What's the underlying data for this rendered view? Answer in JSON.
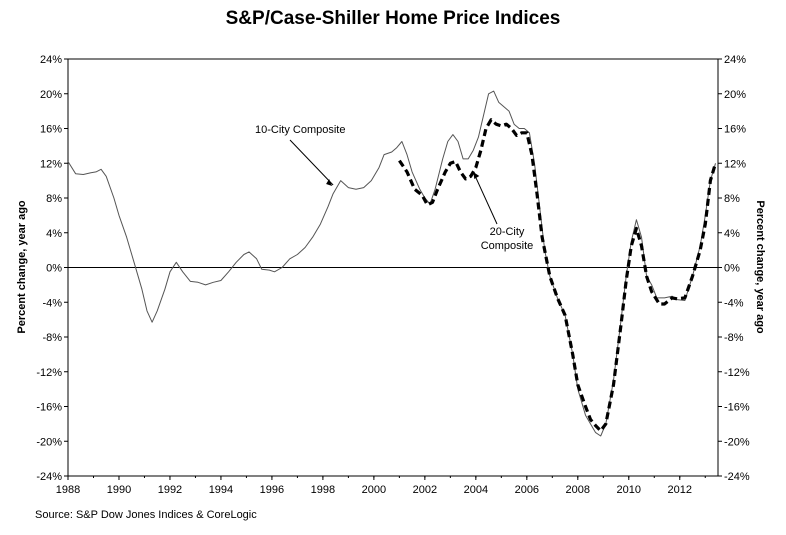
{
  "chart_data": {
    "type": "line",
    "title": "S&P/Case-Shiller Home Price Indices",
    "source": "Source: S&P Dow Jones Indices & CoreLogic",
    "ylabel_left": "Percent change, year ago",
    "ylabel_right": "Percent change, year ago",
    "xlim": [
      1988,
      2013.5
    ],
    "ylim": [
      -24,
      24
    ],
    "x_ticks": [
      "1988",
      "1990",
      "1992",
      "1994",
      "1996",
      "1998",
      "2000",
      "2002",
      "2004",
      "2006",
      "2008",
      "2010",
      "2012"
    ],
    "y_ticks": [
      "24%",
      "20%",
      "16%",
      "12%",
      "8%",
      "4%",
      "0%",
      "-4%",
      "-8%",
      "-12%",
      "-16%",
      "-20%",
      "-24%"
    ],
    "grid": false,
    "zero_line": true,
    "annotations": [
      {
        "text": "10-City Composite",
        "x": 1998.4,
        "y": 9.5
      },
      {
        "text": "20-City",
        "x": 2003.9,
        "y": 11.0
      },
      {
        "text": "Composite",
        "x": 2003.9,
        "y": 11.0
      }
    ],
    "series": [
      {
        "name": "10-City Composite",
        "style": "solid",
        "color": "#555555",
        "points": [
          [
            1988.0,
            12.2
          ],
          [
            1988.3,
            10.8
          ],
          [
            1988.6,
            10.7
          ],
          [
            1988.9,
            10.9
          ],
          [
            1989.1,
            11.0
          ],
          [
            1989.3,
            11.3
          ],
          [
            1989.5,
            10.5
          ],
          [
            1989.8,
            8.0
          ],
          [
            1990.0,
            6.0
          ],
          [
            1990.3,
            3.5
          ],
          [
            1990.6,
            0.5
          ],
          [
            1990.9,
            -2.5
          ],
          [
            1991.1,
            -5.0
          ],
          [
            1991.3,
            -6.3
          ],
          [
            1991.5,
            -5.0
          ],
          [
            1991.8,
            -2.5
          ],
          [
            1992.0,
            -0.5
          ],
          [
            1992.25,
            0.6
          ],
          [
            1992.5,
            -0.5
          ],
          [
            1992.8,
            -1.6
          ],
          [
            1993.1,
            -1.7
          ],
          [
            1993.4,
            -2.0
          ],
          [
            1993.7,
            -1.7
          ],
          [
            1994.0,
            -1.5
          ],
          [
            1994.3,
            -0.5
          ],
          [
            1994.6,
            0.6
          ],
          [
            1994.9,
            1.5
          ],
          [
            1995.1,
            1.8
          ],
          [
            1995.4,
            1.0
          ],
          [
            1995.6,
            -0.2
          ],
          [
            1995.9,
            -0.3
          ],
          [
            1996.1,
            -0.5
          ],
          [
            1996.4,
            0.0
          ],
          [
            1996.7,
            1.0
          ],
          [
            1997.0,
            1.5
          ],
          [
            1997.3,
            2.3
          ],
          [
            1997.6,
            3.5
          ],
          [
            1997.9,
            5.0
          ],
          [
            1998.2,
            7.0
          ],
          [
            1998.4,
            8.5
          ],
          [
            1998.7,
            10.0
          ],
          [
            1999.0,
            9.2
          ],
          [
            1999.3,
            9.0
          ],
          [
            1999.6,
            9.2
          ],
          [
            1999.9,
            10.0
          ],
          [
            2000.2,
            11.5
          ],
          [
            2000.4,
            13.0
          ],
          [
            2000.7,
            13.3
          ],
          [
            2000.9,
            13.8
          ],
          [
            2001.1,
            14.5
          ],
          [
            2001.3,
            13.0
          ],
          [
            2001.5,
            11.0
          ],
          [
            2001.8,
            9.0
          ],
          [
            2002.0,
            8.0
          ],
          [
            2002.2,
            7.3
          ],
          [
            2002.4,
            9.0
          ],
          [
            2002.7,
            12.5
          ],
          [
            2002.9,
            14.5
          ],
          [
            2003.1,
            15.3
          ],
          [
            2003.3,
            14.5
          ],
          [
            2003.5,
            12.5
          ],
          [
            2003.7,
            12.5
          ],
          [
            2003.9,
            13.5
          ],
          [
            2004.1,
            15.0
          ],
          [
            2004.3,
            17.5
          ],
          [
            2004.5,
            20.0
          ],
          [
            2004.7,
            20.3
          ],
          [
            2004.9,
            19.0
          ],
          [
            2005.1,
            18.5
          ],
          [
            2005.3,
            18.0
          ],
          [
            2005.5,
            16.5
          ],
          [
            2005.7,
            16.0
          ],
          [
            2005.9,
            16.0
          ],
          [
            2006.1,
            15.5
          ],
          [
            2006.3,
            12.0
          ],
          [
            2006.5,
            7.0
          ],
          [
            2006.7,
            2.0
          ],
          [
            2006.9,
            -1.0
          ],
          [
            2007.2,
            -3.5
          ],
          [
            2007.5,
            -5.5
          ],
          [
            2007.8,
            -10.0
          ],
          [
            2008.0,
            -14.0
          ],
          [
            2008.3,
            -17.0
          ],
          [
            2008.5,
            -18.0
          ],
          [
            2008.7,
            -19.0
          ],
          [
            2008.9,
            -19.4
          ],
          [
            2009.1,
            -18.0
          ],
          [
            2009.4,
            -13.0
          ],
          [
            2009.7,
            -6.0
          ],
          [
            2009.9,
            -1.0
          ],
          [
            2010.1,
            3.0
          ],
          [
            2010.3,
            5.5
          ],
          [
            2010.5,
            3.5
          ],
          [
            2010.7,
            -1.0
          ],
          [
            2010.9,
            -2.0
          ],
          [
            2011.1,
            -3.5
          ],
          [
            2011.4,
            -3.5
          ],
          [
            2011.7,
            -3.3
          ],
          [
            2011.9,
            -3.7
          ],
          [
            2012.2,
            -3.8
          ],
          [
            2012.5,
            -1.0
          ],
          [
            2012.8,
            2.5
          ],
          [
            2013.0,
            6.0
          ],
          [
            2013.2,
            10.0
          ],
          [
            2013.4,
            12.0
          ]
        ]
      },
      {
        "name": "20-City Composite",
        "style": "dashed",
        "color": "#000000",
        "points": [
          [
            2001.0,
            12.3
          ],
          [
            2001.3,
            11.0
          ],
          [
            2001.6,
            9.0
          ],
          [
            2001.9,
            8.3
          ],
          [
            2002.1,
            7.2
          ],
          [
            2002.3,
            7.5
          ],
          [
            2002.5,
            9.0
          ],
          [
            2002.8,
            11.0
          ],
          [
            2003.0,
            12.0
          ],
          [
            2003.2,
            12.2
          ],
          [
            2003.4,
            11.0
          ],
          [
            2003.6,
            10.2
          ],
          [
            2003.8,
            10.5
          ],
          [
            2004.0,
            11.5
          ],
          [
            2004.2,
            13.5
          ],
          [
            2004.4,
            16.0
          ],
          [
            2004.6,
            17.0
          ],
          [
            2004.8,
            16.5
          ],
          [
            2005.0,
            16.3
          ],
          [
            2005.2,
            16.5
          ],
          [
            2005.4,
            16.0
          ],
          [
            2005.6,
            15.2
          ],
          [
            2005.8,
            15.5
          ],
          [
            2006.0,
            15.5
          ],
          [
            2006.2,
            13.0
          ],
          [
            2006.4,
            8.5
          ],
          [
            2006.6,
            3.5
          ],
          [
            2006.9,
            -1.0
          ],
          [
            2007.2,
            -3.5
          ],
          [
            2007.5,
            -5.5
          ],
          [
            2007.8,
            -10.0
          ],
          [
            2008.0,
            -13.5
          ],
          [
            2008.3,
            -16.0
          ],
          [
            2008.5,
            -17.5
          ],
          [
            2008.7,
            -18.2
          ],
          [
            2008.9,
            -18.8
          ],
          [
            2009.1,
            -18.0
          ],
          [
            2009.4,
            -13.5
          ],
          [
            2009.7,
            -6.5
          ],
          [
            2009.9,
            -1.5
          ],
          [
            2010.1,
            2.5
          ],
          [
            2010.3,
            4.5
          ],
          [
            2010.5,
            2.5
          ],
          [
            2010.7,
            -1.0
          ],
          [
            2010.9,
            -2.8
          ],
          [
            2011.2,
            -4.2
          ],
          [
            2011.4,
            -4.2
          ],
          [
            2011.7,
            -3.5
          ],
          [
            2011.9,
            -3.6
          ],
          [
            2012.2,
            -3.5
          ],
          [
            2012.5,
            -1.0
          ],
          [
            2012.8,
            2.0
          ],
          [
            2013.0,
            5.0
          ],
          [
            2013.2,
            10.0
          ],
          [
            2013.4,
            12.0
          ]
        ]
      }
    ]
  }
}
